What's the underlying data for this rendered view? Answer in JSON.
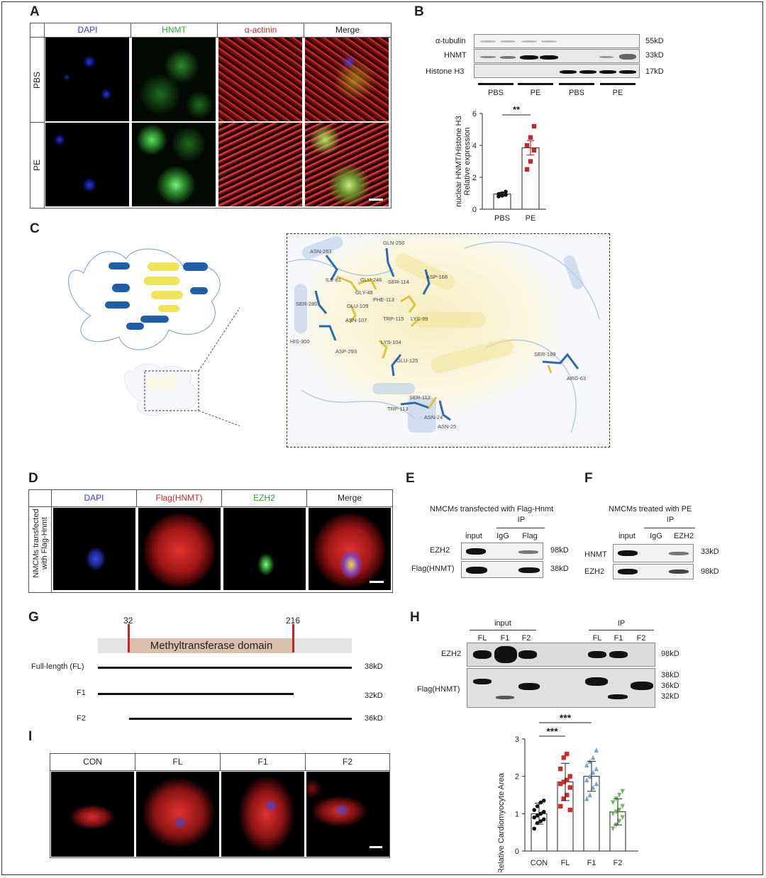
{
  "panels": {
    "A": {
      "letter": "A",
      "columns": [
        "DAPI",
        "HNMT",
        "α-actinin",
        "Merge"
      ],
      "column_colors": [
        "#2c3bd6",
        "#2fa52f",
        "#c62a2a",
        "#222222"
      ],
      "rows": [
        "PBS",
        "PE"
      ]
    },
    "B": {
      "letter": "B",
      "blot_labels": [
        "α-tubulin",
        "HNMT",
        "Histone H3"
      ],
      "sizes": [
        "55kD",
        "33kD",
        "17kD"
      ],
      "groups": [
        "PBS",
        "PE",
        "PBS",
        "PE"
      ]
    },
    "C": {
      "letter": "C",
      "residues": [
        "ASN-263",
        "GLN-250",
        "ILE-81",
        "GLU-246",
        "GLY-48",
        "SER-114",
        "ASP-168",
        "PHE-113",
        "SER-280",
        "GLU-109",
        "TRP-115",
        "LYS-99",
        "ASN-107",
        "HIS-300",
        "ASP-293",
        "LYS-104",
        "GLU-125",
        "SER-189",
        "ARG-63",
        "SER-112",
        "TRP-113",
        "ASN-24",
        "ASN-25"
      ]
    },
    "D": {
      "letter": "D",
      "columns": [
        "DAPI",
        "Flag(HNMT)",
        "EZH2",
        "Merge"
      ],
      "column_colors": [
        "#2c3bd6",
        "#c62a2a",
        "#2fa52f",
        "#222222"
      ],
      "row_label_1": "NMCMs transfected",
      "row_label_2": "with Flag-Hnmt"
    },
    "E": {
      "letter": "E",
      "title": "NMCMs transfected with Flag-Hnmt",
      "ip": "IP",
      "lanes": [
        "input",
        "IgG",
        "Flag"
      ],
      "rows": [
        "EZH2",
        "Flag(HNMT)"
      ],
      "sizes": [
        "98kD",
        "38kD"
      ]
    },
    "F": {
      "letter": "F",
      "title": "NMCMs treated with PE",
      "ip": "IP",
      "lanes": [
        "input",
        "IgG",
        "EZH2"
      ],
      "rows": [
        "HNMT",
        "EZH2"
      ],
      "sizes": [
        "33kD",
        "98kD"
      ]
    },
    "G": {
      "letter": "G",
      "domain_label": "Methyltransferase domain",
      "start": "32",
      "end": "216",
      "constructs": [
        "Full-length (FL)",
        "F1",
        "F2"
      ],
      "sizes": [
        "38kD",
        "32kD",
        "36kD"
      ]
    },
    "H": {
      "letter": "H",
      "input": "input",
      "ip": "IP",
      "lanes": [
        "FL",
        "F1",
        "F2",
        "FL",
        "F1",
        "F2"
      ],
      "rows": [
        "EZH2",
        "Flag(HNMT)"
      ],
      "sizes_top": "98kD",
      "sizes_bottom": [
        "38kD",
        "36kD",
        "32kD"
      ]
    },
    "I": {
      "letter": "I",
      "columns": [
        "CON",
        "FL",
        "F1",
        "F2"
      ]
    }
  },
  "chart_data": [
    {
      "type": "bar",
      "ylabel_1": "nuclear HNMT/Histone H3",
      "ylabel_2": "Relative expression",
      "categories": [
        "PBS",
        "PE"
      ],
      "values": [
        0.95,
        3.85
      ],
      "errors": [
        0.1,
        0.45
      ],
      "points": [
        [
          0.8,
          0.85,
          0.9,
          0.95,
          1.0,
          1.1
        ],
        [
          2.5,
          3.0,
          3.7,
          4.0,
          4.5,
          5.2
        ]
      ],
      "point_colors": [
        "#111111",
        "#c0282d"
      ],
      "ylim": [
        0,
        6
      ],
      "yticks": [
        "0",
        "2",
        "4",
        "6"
      ],
      "significance": "**"
    },
    {
      "type": "bar",
      "ylabel": "Relative Cardiomyocyte Area",
      "categories": [
        "CON",
        "FL",
        "F1",
        "F2"
      ],
      "values": [
        1.0,
        1.85,
        2.0,
        1.05
      ],
      "errors": [
        0.28,
        0.5,
        0.4,
        0.35
      ],
      "point_colors": [
        "#111111",
        "#d42a2a",
        "#7aa6c2",
        "#6cbd5a"
      ],
      "point_markers": [
        "circle",
        "square",
        "triangle",
        "triangle-down"
      ],
      "points": [
        [
          0.6,
          0.75,
          0.8,
          0.85,
          0.9,
          0.95,
          1.0,
          1.05,
          1.1,
          1.2,
          1.3,
          1.35
        ],
        [
          1.2,
          1.4,
          1.5,
          1.7,
          1.8,
          1.85,
          1.9,
          2.0,
          2.2,
          2.5,
          2.6,
          1.1
        ],
        [
          1.4,
          1.5,
          1.7,
          1.8,
          1.9,
          2.0,
          2.1,
          2.2,
          2.3,
          2.4,
          2.5,
          2.7
        ],
        [
          0.6,
          0.7,
          0.8,
          0.9,
          1.0,
          1.05,
          1.1,
          1.2,
          1.3,
          1.4,
          1.5,
          1.6
        ]
      ],
      "ylim": [
        0,
        3
      ],
      "yticks": [
        "0",
        "1",
        "2",
        "3"
      ],
      "significance": [
        "***",
        "***"
      ]
    }
  ]
}
